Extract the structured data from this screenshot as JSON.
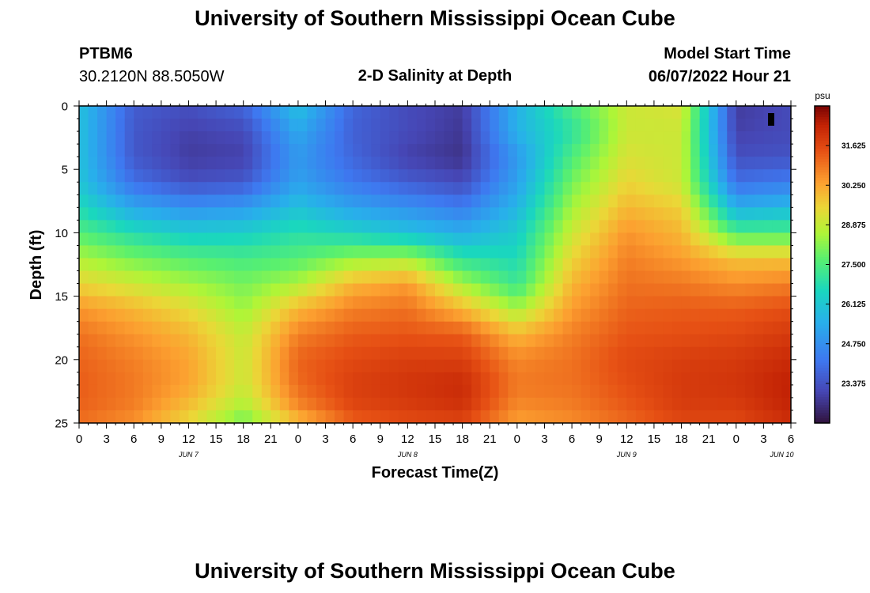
{
  "page": {
    "title": "University of Southern Mississippi Ocean Cube",
    "station_id": "PTBM6",
    "station_coords": "30.2120N  88.5050W",
    "plot_title": "2-D Salinity at Depth",
    "model_start_label": "Model Start Time",
    "model_start_value": "06/07/2022 Hour 21",
    "footer_title": "University of Southern Mississippi Ocean Cube"
  },
  "chart_data": {
    "type": "heatmap",
    "title": "2-D Salinity at Depth",
    "xlabel": "Forecast Time(Z)",
    "ylabel": "Depth (ft)",
    "x_hours_range": [
      0,
      78
    ],
    "x_tick_step_hours": 3,
    "x_tick_labels": [
      "0",
      "3",
      "6",
      "9",
      "12",
      "15",
      "18",
      "21",
      "0",
      "3",
      "6",
      "9",
      "12",
      "15",
      "18",
      "21",
      "0",
      "3",
      "6",
      "9",
      "12",
      "15",
      "18",
      "21",
      "0",
      "3",
      "6"
    ],
    "date_labels": [
      {
        "hour": 12,
        "label": "JUN 7"
      },
      {
        "hour": 36,
        "label": "JUN 8"
      },
      {
        "hour": 60,
        "label": "JUN 9"
      },
      {
        "hour": 77,
        "label": "JUN 10"
      }
    ],
    "y_range_ft": [
      0,
      25
    ],
    "y_tick_labels": [
      "0",
      "5",
      "10",
      "15",
      "20",
      "25"
    ],
    "colorbar": {
      "unit": "psu",
      "min": 22.0,
      "max": 33.0,
      "tick_values": [
        23.375,
        24.75,
        26.125,
        27.5,
        28.875,
        30.25,
        31.625
      ],
      "tick_labels": [
        "23.375",
        "24.750",
        "26.125",
        "27.500",
        "28.875",
        "30.250",
        "31.625"
      ]
    },
    "grid_x_hours": [
      0,
      6,
      12,
      18,
      24,
      30,
      36,
      42,
      48,
      54,
      60,
      66,
      72,
      78
    ],
    "grid_y_ft": [
      0,
      2,
      4,
      6,
      8,
      10,
      12,
      14,
      16,
      18,
      20,
      22,
      24,
      25
    ],
    "salinity_psu": [
      [
        26.0,
        23.6,
        23.3,
        23.8,
        26.0,
        23.8,
        23.2,
        22.9,
        25.6,
        27.5,
        29.0,
        29.2,
        22.9,
        23.2
      ],
      [
        26.0,
        23.5,
        23.0,
        23.2,
        25.4,
        23.7,
        23.2,
        22.8,
        25.6,
        27.0,
        29.0,
        29.0,
        23.0,
        23.2
      ],
      [
        26.0,
        23.5,
        22.9,
        23.0,
        25.0,
        23.8,
        23.0,
        22.7,
        25.0,
        27.5,
        29.2,
        29.0,
        23.3,
        23.4
      ],
      [
        26.1,
        24.0,
        23.3,
        23.5,
        25.2,
        24.2,
        23.6,
        23.2,
        25.2,
        28.0,
        29.5,
        29.0,
        24.0,
        24.3
      ],
      [
        26.7,
        25.3,
        24.8,
        25.0,
        26.0,
        25.2,
        24.8,
        24.3,
        25.7,
        28.5,
        30.0,
        29.6,
        25.5,
        25.8
      ],
      [
        27.6,
        26.8,
        26.3,
        26.4,
        26.9,
        26.5,
        26.0,
        25.5,
        26.3,
        29.0,
        30.5,
        30.0,
        27.5,
        27.5
      ],
      [
        28.6,
        28.0,
        27.6,
        27.4,
        27.6,
        28.3,
        28.5,
        27.0,
        26.7,
        29.5,
        30.8,
        30.4,
        29.8,
        29.8
      ],
      [
        29.5,
        29.0,
        28.5,
        28.0,
        28.6,
        30.0,
        30.4,
        28.5,
        27.2,
        30.0,
        31.0,
        30.9,
        30.6,
        30.8
      ],
      [
        30.5,
        30.0,
        29.4,
        28.4,
        30.0,
        30.8,
        31.0,
        30.0,
        28.5,
        30.4,
        31.2,
        31.3,
        31.3,
        31.5
      ],
      [
        31.0,
        30.5,
        30.0,
        28.9,
        30.8,
        31.3,
        31.4,
        31.3,
        30.0,
        30.8,
        31.4,
        31.5,
        31.6,
        31.9
      ],
      [
        31.2,
        30.8,
        30.3,
        29.0,
        31.2,
        31.6,
        31.8,
        31.8,
        30.7,
        31.0,
        31.6,
        31.8,
        31.9,
        32.2
      ],
      [
        31.3,
        30.9,
        30.3,
        29.0,
        31.1,
        31.8,
        32.0,
        32.2,
        30.9,
        31.0,
        31.5,
        31.9,
        32.0,
        32.4
      ],
      [
        31.2,
        30.8,
        29.8,
        28.5,
        30.6,
        31.6,
        31.8,
        32.0,
        30.6,
        30.8,
        31.3,
        31.8,
        31.8,
        32.3
      ],
      [
        31.0,
        30.5,
        29.4,
        27.8,
        29.8,
        31.2,
        31.5,
        31.6,
        30.3,
        30.6,
        31.1,
        31.6,
        31.6,
        32.1
      ]
    ]
  }
}
